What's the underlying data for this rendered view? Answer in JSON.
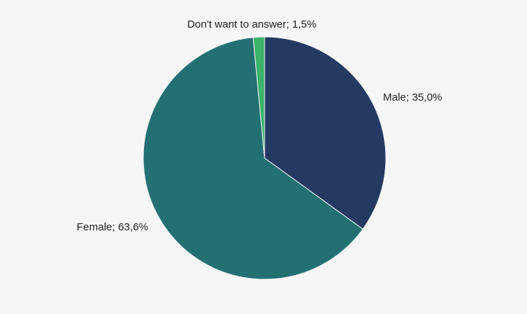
{
  "chart_data": {
    "type": "pie",
    "start_angle_deg": 0,
    "direction": "clockwise",
    "slices": [
      {
        "label": "Male; 35,0%",
        "category": "Male",
        "value": 35.0,
        "color": "#253a63"
      },
      {
        "label": "Female; 63,6%",
        "category": "Female",
        "value": 63.6,
        "color": "#237073"
      },
      {
        "label": "Don't want to answer; 1,5%",
        "category": "Don't want to answer",
        "value": 1.5,
        "color": "#3bb36b"
      }
    ]
  },
  "background_color": "#f5f6f8"
}
